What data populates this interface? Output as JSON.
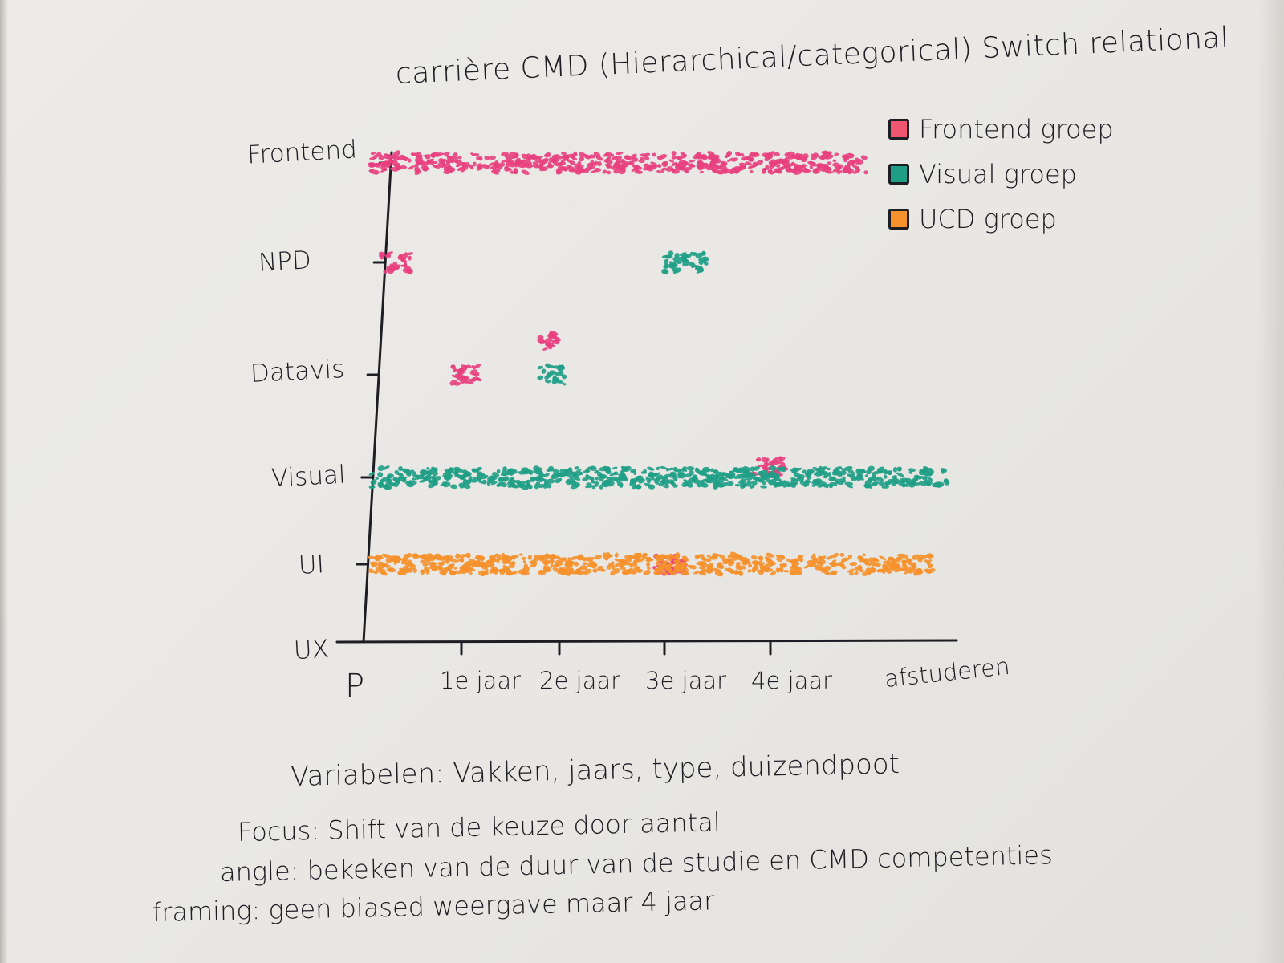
{
  "chart_data": {
    "type": "scatter",
    "title": "carrière CMD (Hierarchical/categorical) Switch relational",
    "x_categories": [
      "P",
      "1e jaar",
      "2e jaar",
      "3e jaar",
      "4e jaar",
      "afstuderen"
    ],
    "y_categories": [
      "UX",
      "UI",
      "Visual",
      "Datavis",
      "NPD",
      "Frontend"
    ],
    "legend": [
      {
        "name": "Frontend groep",
        "color": "#f0556f"
      },
      {
        "name": "Visual groep",
        "color": "#1f9e86"
      },
      {
        "name": "UCD groep",
        "color": "#f6912b"
      }
    ],
    "series": [
      {
        "name": "Frontend groep",
        "color": "#e8407e",
        "clusters": [
          {
            "y": "Frontend",
            "x": [
              0.1,
              4.7
            ]
          },
          {
            "y": "NPD",
            "x": [
              0.2,
              0.5
            ]
          },
          {
            "y": "Datavis",
            "x": [
              0.9,
              1.2
            ]
          },
          {
            "y": "Datavis",
            "x": [
              1.8,
              2.0
            ],
            "offset": 0.35
          },
          {
            "y": "Visual",
            "x": [
              3.85,
              4.1
            ],
            "offset": 0.1
          },
          {
            "y": "UI",
            "x": [
              2.9,
              3.2
            ]
          }
        ]
      },
      {
        "name": "Visual groep",
        "color": "#1f9e86",
        "clusters": [
          {
            "y": "Visual",
            "x": [
              0.1,
              5.3
            ]
          },
          {
            "y": "NPD",
            "x": [
              3.0,
              3.4
            ]
          },
          {
            "y": "Datavis",
            "x": [
              1.8,
              2.05
            ]
          }
        ]
      },
      {
        "name": "UCD groep",
        "color": "#f6912b",
        "clusters": [
          {
            "y": "UI",
            "x": [
              0.1,
              5.2
            ]
          }
        ]
      }
    ],
    "legend_position": "top-right",
    "grid": false
  },
  "notes": {
    "variabelen": "Variabelen: Vakken, jaars, type, duizendpoot",
    "focus": "Focus: Shift van de keuze door aantal",
    "angle": "angle: bekeken van de duur van de studie en CMD competenties",
    "framing": "framing: geen biased weergave maar 4 jaar"
  }
}
